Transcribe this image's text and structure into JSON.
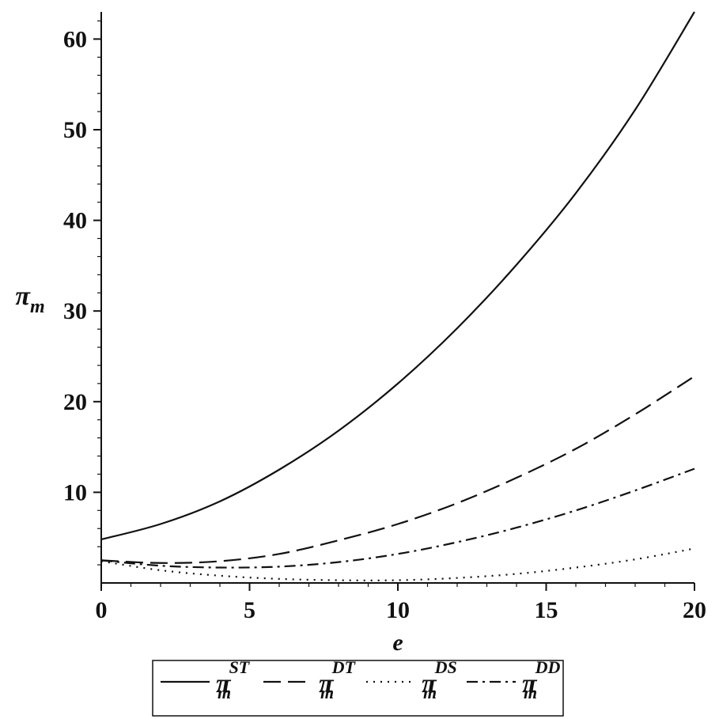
{
  "chart_data": {
    "type": "line",
    "title": "",
    "xlabel": "e",
    "ylabel": "πm",
    "ylabel_main": "π",
    "ylabel_sub": "m",
    "xlim": [
      0,
      20
    ],
    "ylim": [
      0,
      63
    ],
    "xticks": [
      0,
      5,
      10,
      15,
      20
    ],
    "yticks": [
      10,
      20,
      30,
      40,
      50,
      60
    ],
    "x_minor_step": 1,
    "y_minor_step": 2,
    "grid": false,
    "legend_position": "bottom",
    "x": [
      0,
      2,
      4,
      6,
      8,
      10,
      12,
      14,
      16,
      18,
      20
    ],
    "series": [
      {
        "name": "πmST",
        "symbol": "π",
        "sub": "m",
        "sup": "ST",
        "dash": "solid",
        "values": [
          4.8,
          6.5,
          9.0,
          12.5,
          16.8,
          22.0,
          28.1,
          35.1,
          43.0,
          52.2,
          63.0
        ]
      },
      {
        "name": "πmDT",
        "symbol": "π",
        "sub": "m",
        "sup": "DT",
        "dash": "dash",
        "values": [
          2.5,
          2.2,
          2.4,
          3.2,
          4.7,
          6.5,
          8.8,
          11.6,
          14.8,
          18.6,
          22.8
        ]
      },
      {
        "name": "πmDS",
        "symbol": "π",
        "sub": "m",
        "sup": "DS",
        "dash": "dot",
        "values": [
          2.4,
          1.4,
          0.8,
          0.45,
          0.3,
          0.3,
          0.55,
          1.0,
          1.7,
          2.6,
          3.8
        ]
      },
      {
        "name": "πmDD",
        "symbol": "π",
        "sub": "m",
        "sup": "DD",
        "dash": "dashdot",
        "values": [
          2.5,
          1.9,
          1.7,
          1.8,
          2.3,
          3.2,
          4.5,
          6.1,
          8.0,
          10.2,
          12.6
        ]
      }
    ]
  }
}
